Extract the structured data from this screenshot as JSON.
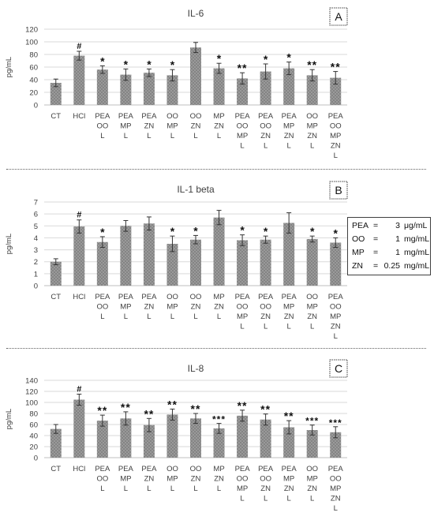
{
  "chart_data": [
    {
      "type": "bar",
      "panel_label": "A",
      "title": "IL-6",
      "ylabel": "pg/mL",
      "ylim": [
        0,
        120
      ],
      "yticks": [
        0,
        20,
        40,
        60,
        80,
        100,
        120
      ],
      "grid": true,
      "categories": [
        [
          "CT"
        ],
        [
          "HCl"
        ],
        [
          "PEA",
          "OO",
          "L"
        ],
        [
          "PEA",
          "MP",
          "L"
        ],
        [
          "PEA",
          "ZN",
          "L"
        ],
        [
          "OO",
          "MP",
          "L"
        ],
        [
          "OO",
          "ZN",
          "L"
        ],
        [
          "MP",
          "ZN",
          "L"
        ],
        [
          "PEA",
          "OO",
          "MP",
          "L"
        ],
        [
          "PEA",
          "OO",
          "ZN",
          "L"
        ],
        [
          "PEA",
          "MP",
          "ZN",
          "L"
        ],
        [
          "OO",
          "MP",
          "ZN",
          "L"
        ],
        [
          "PEA",
          "OO",
          "MP",
          "ZN",
          "L"
        ]
      ],
      "values": [
        35,
        78,
        56,
        48,
        51,
        47,
        91,
        58,
        42,
        53,
        58,
        47,
        43
      ],
      "errors": [
        6,
        7,
        6,
        9,
        6,
        9,
        8,
        8,
        9,
        12,
        10,
        9,
        10
      ],
      "annotations": [
        "",
        "#",
        "*",
        "*",
        "*",
        "*",
        "",
        "*",
        "**",
        "*",
        "*",
        "**",
        "**"
      ]
    },
    {
      "type": "bar",
      "panel_label": "B",
      "title": "IL-1 beta",
      "ylabel": "pg/mL",
      "ylim": [
        0,
        7
      ],
      "yticks": [
        0,
        1,
        2,
        3,
        4,
        5,
        6,
        7
      ],
      "grid": true,
      "categories": [
        [
          "CT"
        ],
        [
          "HCl"
        ],
        [
          "PEA",
          "OO",
          "L"
        ],
        [
          "PEA",
          "MP",
          "L"
        ],
        [
          "PEA",
          "ZN",
          "L"
        ],
        [
          "OO",
          "MP",
          "L"
        ],
        [
          "OO",
          "ZN",
          "L"
        ],
        [
          "MP",
          "ZN",
          "L"
        ],
        [
          "PEA",
          "OO",
          "MP",
          "L"
        ],
        [
          "PEA",
          "OO",
          "ZN",
          "L"
        ],
        [
          "PEA",
          "MP",
          "ZN",
          "L"
        ],
        [
          "OO",
          "MP",
          "ZN",
          "L"
        ],
        [
          "PEA",
          "OO",
          "MP",
          "ZN",
          "L"
        ]
      ],
      "values": [
        2.0,
        4.95,
        3.65,
        5.0,
        5.2,
        3.5,
        3.85,
        5.7,
        3.8,
        3.85,
        5.25,
        3.9,
        3.6
      ],
      "errors": [
        0.25,
        0.55,
        0.45,
        0.45,
        0.55,
        0.65,
        0.35,
        0.6,
        0.45,
        0.3,
        0.85,
        0.25,
        0.4
      ],
      "annotations": [
        "",
        "#",
        "*",
        "",
        "",
        "*",
        "*",
        "",
        "*",
        "*",
        "",
        "*",
        "*"
      ]
    },
    {
      "type": "bar",
      "panel_label": "C",
      "title": "IL-8",
      "ylabel": "pg/mL",
      "ylim": [
        0,
        140
      ],
      "yticks": [
        0,
        20,
        40,
        60,
        80,
        100,
        120,
        140
      ],
      "grid": true,
      "categories": [
        [
          "CT"
        ],
        [
          "HCl"
        ],
        [
          "PEA",
          "OO",
          "L"
        ],
        [
          "PEA",
          "MP",
          "L"
        ],
        [
          "PEA",
          "ZN",
          "L"
        ],
        [
          "OO",
          "MP",
          "L"
        ],
        [
          "OO",
          "ZN",
          "L"
        ],
        [
          "MP",
          "ZN",
          "L"
        ],
        [
          "PEA",
          "OO",
          "MP",
          "L"
        ],
        [
          "PEA",
          "OO",
          "ZN",
          "L"
        ],
        [
          "PEA",
          "MP",
          "ZN",
          "L"
        ],
        [
          "OO",
          "MP",
          "ZN",
          "L"
        ],
        [
          "PEA",
          "OO",
          "MP",
          "ZN",
          "L"
        ]
      ],
      "values": [
        52,
        105,
        67,
        71,
        59,
        78,
        71,
        53,
        76,
        69,
        55,
        50,
        46
      ],
      "errors": [
        8,
        10,
        10,
        12,
        12,
        10,
        9,
        9,
        10,
        10,
        12,
        9,
        10
      ],
      "annotations": [
        "",
        "#",
        "**",
        "**",
        "**",
        "**",
        "**",
        "***",
        "**",
        "**",
        "**",
        "***",
        "***"
      ]
    }
  ],
  "legend": {
    "rows": [
      {
        "name": "PEA",
        "value": "3",
        "unit": "μg/mL"
      },
      {
        "name": "OO",
        "value": "1",
        "unit": "mg/mL"
      },
      {
        "name": "MP",
        "value": "1",
        "unit": "mg/mL"
      },
      {
        "name": "ZN",
        "value": "0.25",
        "unit": "mg/mL"
      }
    ]
  },
  "colors": {
    "bar_fill": "#9a9a9a",
    "bar_pattern": "#7a7a7a",
    "grid": "#d9d9d9",
    "axis": "#bfbfbf",
    "text": "#404040",
    "frame": "#404040"
  }
}
